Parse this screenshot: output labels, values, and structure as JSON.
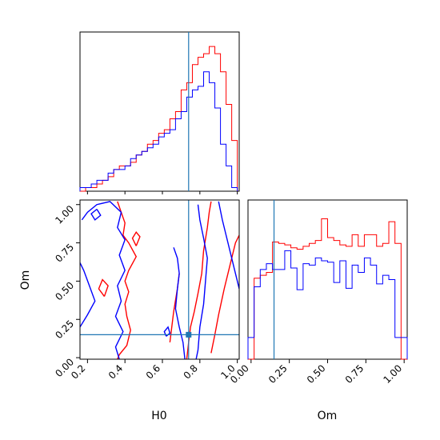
{
  "colors": {
    "series_a": "#ff0000",
    "series_b": "#0000ff",
    "truth": "#1f77b4",
    "axes": "#000000"
  },
  "chart_data": [
    {
      "type": "histogram",
      "panel": "top-left",
      "variable": "H0",
      "xlim": [
        0.16,
        1.01
      ],
      "truth": 0.74,
      "bin_edges": [
        0.16,
        0.19,
        0.22,
        0.25,
        0.28,
        0.31,
        0.34,
        0.37,
        0.4,
        0.43,
        0.46,
        0.49,
        0.52,
        0.55,
        0.58,
        0.61,
        0.64,
        0.67,
        0.7,
        0.73,
        0.76,
        0.79,
        0.82,
        0.85,
        0.88,
        0.91,
        0.94,
        0.97,
        1.0
      ],
      "series": [
        {
          "color_key": "series_a",
          "values": [
            0,
            1,
            1,
            2,
            3,
            4,
            6,
            7,
            7,
            8,
            10,
            11,
            13,
            14,
            16,
            17,
            20,
            22,
            28,
            30,
            35,
            37,
            38,
            40,
            38,
            33,
            24,
            14
          ]
        },
        {
          "color_key": "series_b",
          "values": [
            1,
            1,
            2,
            3,
            3,
            5,
            6,
            6,
            7,
            9,
            10,
            11,
            12,
            13,
            15,
            16,
            17,
            20,
            22,
            26,
            28,
            29,
            33,
            30,
            23,
            13,
            7,
            1
          ]
        }
      ]
    },
    {
      "type": "contour",
      "panel": "bottom-left",
      "xlabel": "H0",
      "ylabel": "Om",
      "xlim": [
        0.16,
        1.01
      ],
      "ylim": [
        -0.01,
        1.03
      ],
      "xticks": [
        "0.2",
        "0.4",
        "0.6",
        "0.8",
        "1.0"
      ],
      "yticks": [
        "0.00",
        "0.25",
        "0.50",
        "0.75",
        "1.00"
      ],
      "truth": {
        "x": 0.74,
        "y": 0.15
      },
      "series": [
        {
          "color_key": "series_a",
          "contours": [
            [
              [
                0.36,
                1.02
              ],
              [
                0.38,
                0.95
              ],
              [
                0.4,
                0.88
              ],
              [
                0.39,
                0.8
              ],
              [
                0.42,
                0.75
              ],
              [
                0.46,
                0.66
              ],
              [
                0.42,
                0.57
              ],
              [
                0.4,
                0.5
              ],
              [
                0.42,
                0.43
              ],
              [
                0.4,
                0.35
              ],
              [
                0.41,
                0.27
              ],
              [
                0.43,
                0.18
              ],
              [
                0.41,
                0.08
              ],
              [
                0.37,
                0.02
              ],
              [
                0.36,
                -0.01
              ]
            ],
            [
              [
                0.73,
                -0.01
              ],
              [
                0.74,
                0.1
              ],
              [
                0.75,
                0.2
              ],
              [
                0.77,
                0.3
              ],
              [
                0.79,
                0.42
              ],
              [
                0.81,
                0.55
              ],
              [
                0.82,
                0.7
              ],
              [
                0.84,
                0.85
              ],
              [
                0.85,
                0.95
              ],
              [
                0.86,
                1.02
              ]
            ],
            [
              [
                0.86,
                0.03
              ],
              [
                0.88,
                0.15
              ],
              [
                0.9,
                0.28
              ],
              [
                0.93,
                0.45
              ],
              [
                0.96,
                0.6
              ],
              [
                0.99,
                0.75
              ],
              [
                1.01,
                0.8
              ]
            ],
            [
              [
                0.64,
                0.1
              ],
              [
                0.65,
                0.2
              ],
              [
                0.66,
                0.3
              ],
              [
                0.68,
                0.45
              ],
              [
                0.69,
                0.55
              ]
            ],
            [
              [
                0.46,
                0.73
              ],
              [
                0.48,
                0.79
              ],
              [
                0.46,
                0.82
              ],
              [
                0.44,
                0.78
              ],
              [
                0.46,
                0.73
              ]
            ],
            [
              [
                0.29,
                0.4
              ],
              [
                0.31,
                0.47
              ],
              [
                0.28,
                0.51
              ],
              [
                0.26,
                0.45
              ],
              [
                0.29,
                0.4
              ]
            ]
          ]
        },
        {
          "color_key": "series_b",
          "contours": [
            [
              [
                0.17,
                0.9
              ],
              [
                0.2,
                0.95
              ],
              [
                0.25,
                1.0
              ],
              [
                0.32,
                1.02
              ],
              [
                0.38,
                0.95
              ],
              [
                0.36,
                0.85
              ],
              [
                0.4,
                0.77
              ],
              [
                0.37,
                0.67
              ],
              [
                0.4,
                0.57
              ],
              [
                0.36,
                0.47
              ],
              [
                0.38,
                0.37
              ],
              [
                0.35,
                0.27
              ],
              [
                0.39,
                0.17
              ],
              [
                0.35,
                0.07
              ],
              [
                0.37,
                -0.01
              ]
            ],
            [
              [
                0.16,
                0.2
              ],
              [
                0.2,
                0.28
              ],
              [
                0.24,
                0.37
              ],
              [
                0.21,
                0.47
              ],
              [
                0.18,
                0.57
              ],
              [
                0.16,
                0.62
              ]
            ],
            [
              [
                0.66,
                0.72
              ],
              [
                0.68,
                0.65
              ],
              [
                0.69,
                0.55
              ],
              [
                0.68,
                0.45
              ],
              [
                0.67,
                0.32
              ],
              [
                0.69,
                0.2
              ],
              [
                0.71,
                0.1
              ],
              [
                0.72,
                -0.01
              ]
            ],
            [
              [
                0.79,
                1.0
              ],
              [
                0.8,
                0.9
              ],
              [
                0.82,
                0.78
              ],
              [
                0.84,
                0.65
              ],
              [
                0.83,
                0.5
              ],
              [
                0.82,
                0.35
              ],
              [
                0.8,
                0.2
              ],
              [
                0.79,
                0.05
              ],
              [
                0.78,
                -0.01
              ]
            ],
            [
              [
                0.9,
                1.02
              ],
              [
                0.92,
                0.9
              ],
              [
                0.94,
                0.8
              ],
              [
                0.97,
                0.65
              ],
              [
                1.0,
                0.5
              ],
              [
                1.01,
                0.45
              ]
            ],
            [
              [
                0.25,
                0.97
              ],
              [
                0.27,
                0.93
              ],
              [
                0.24,
                0.9
              ],
              [
                0.22,
                0.94
              ],
              [
                0.25,
                0.97
              ]
            ],
            [
              [
                0.62,
                0.14
              ],
              [
                0.64,
                0.16
              ],
              [
                0.63,
                0.2
              ],
              [
                0.61,
                0.17
              ],
              [
                0.62,
                0.14
              ]
            ]
          ]
        }
      ]
    },
    {
      "type": "histogram",
      "panel": "bottom-right",
      "xlabel": "Om",
      "xlim": [
        -0.02,
        1.02
      ],
      "xticks": [
        "0.00",
        "0.25",
        "0.50",
        "0.75",
        "1.00"
      ],
      "truth": 0.15,
      "bin_edges": [
        -0.02,
        0.02,
        0.06,
        0.1,
        0.14,
        0.18,
        0.22,
        0.26,
        0.3,
        0.34,
        0.38,
        0.42,
        0.46,
        0.5,
        0.54,
        0.58,
        0.62,
        0.66,
        0.7,
        0.74,
        0.78,
        0.82,
        0.86,
        0.9,
        0.94,
        0.98,
        1.02
      ],
      "series": [
        {
          "color_key": "series_a",
          "values": [
            0,
            56,
            58,
            60,
            81,
            80,
            79,
            77,
            76,
            78,
            80,
            82,
            97,
            84,
            82,
            79,
            78,
            86,
            78,
            86,
            86,
            78,
            80,
            95,
            80,
            0
          ]
        },
        {
          "color_key": "series_b",
          "values": [
            15,
            50,
            62,
            66,
            62,
            62,
            75,
            63,
            48,
            66,
            65,
            70,
            68,
            67,
            53,
            68,
            49,
            65,
            60,
            70,
            65,
            52,
            58,
            55,
            15,
            15
          ]
        }
      ]
    }
  ]
}
